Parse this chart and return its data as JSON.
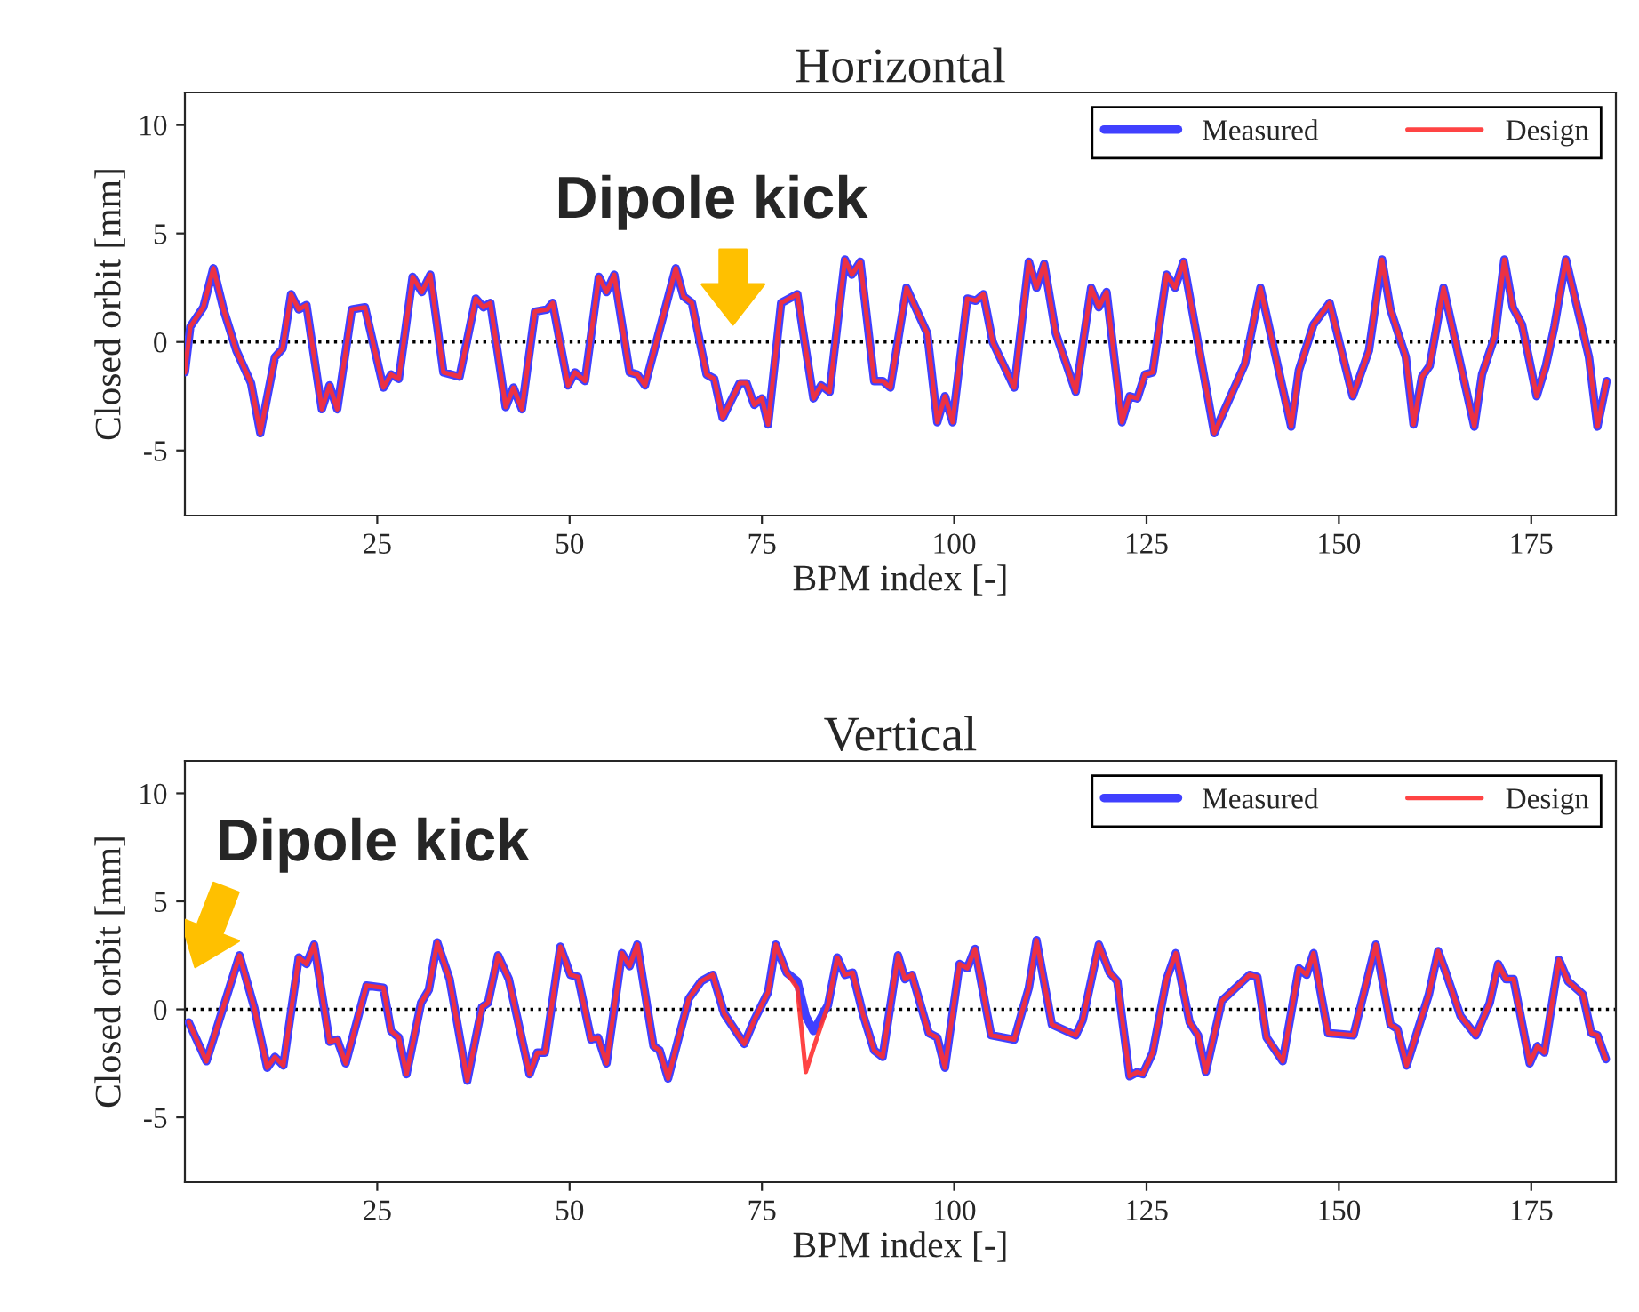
{
  "chart_data": [
    {
      "type": "line",
      "title": "Horizontal",
      "xlabel": "BPM index [-]",
      "ylabel": "Closed orbit [mm]",
      "xlim": [
        0,
        186
      ],
      "ylim": [
        -8,
        11.5
      ],
      "xticks": [
        25,
        50,
        75,
        100,
        125,
        150,
        175
      ],
      "yticks": [
        -5,
        0,
        5,
        10
      ],
      "grid": false,
      "legend": "top right",
      "line_style": "solid",
      "marker": "none",
      "ref_lines": [
        {
          "axis": "y",
          "value": 0,
          "color": "#000000",
          "line_style": "dotted"
        }
      ],
      "annotations": [
        "Dipole kick"
      ],
      "x": [
        0,
        0.7,
        2.4,
        3.7,
        5.1,
        6.7,
        8.6,
        9.8,
        11.7,
        12.7,
        13.8,
        14.8,
        15.8,
        17.8,
        18.8,
        19.8,
        21.7,
        23.4,
        25.8,
        26.8,
        27.8,
        29.6,
        30.8,
        31.9,
        33.6,
        35.7,
        37.8,
        38.8,
        39.7,
        41.7,
        42.7,
        43.8,
        45.5,
        47.1,
        47.8,
        49.8,
        50.7,
        52.0,
        53.8,
        54.8,
        55.8,
        57.8,
        58.8,
        59.8,
        63.8,
        64.8,
        65.9,
        67.8,
        68.8,
        69.9,
        72.1,
        73.0,
        74.0,
        75.0,
        75.8,
        77.5,
        79.6,
        81.7,
        82.7,
        83.8,
        85.8,
        86.7,
        87.8,
        89.6,
        90.7,
        91.7,
        93.8,
        96.5,
        97.8,
        98.8,
        99.8,
        101.7,
        102.8,
        103.8,
        105.0,
        107.8,
        109.7,
        110.7,
        111.7,
        113.2,
        115.8,
        117.8,
        118.8,
        119.8,
        121.8,
        122.8,
        123.8,
        124.8,
        125.8,
        127.6,
        128.7,
        129.8,
        133.8,
        137.8,
        139.8,
        143.8,
        144.8,
        146.7,
        148.8,
        151.8,
        153.9,
        155.6,
        156.7,
        158.7,
        159.7,
        160.8,
        161.8,
        163.6,
        165.6,
        167.6,
        168.6,
        170.3,
        171.5,
        172.6,
        173.8,
        175.7,
        176.9,
        178.0,
        179.5,
        182.5,
        183.6,
        184.8
      ],
      "series": [
        {
          "name": "Measured",
          "color": "#4040ff",
          "values": [
            -1.4,
            0.7,
            1.6,
            3.4,
            1.4,
            -0.4,
            -1.9,
            -4.2,
            -0.7,
            -0.3,
            2.2,
            1.5,
            1.7,
            -3.1,
            -2.0,
            -3.1,
            1.5,
            1.6,
            -2.1,
            -1.5,
            -1.7,
            3.0,
            2.3,
            3.1,
            -1.4,
            -1.6,
            2.0,
            1.6,
            1.8,
            -3.0,
            -2.1,
            -3.1,
            1.4,
            1.5,
            1.8,
            -2.0,
            -1.4,
            -1.8,
            3.0,
            2.3,
            3.1,
            -1.4,
            -1.5,
            -2.0,
            3.4,
            2.1,
            1.8,
            -1.5,
            -1.7,
            -3.5,
            -1.9,
            -1.9,
            -2.9,
            -2.6,
            -3.8,
            1.8,
            2.2,
            -2.6,
            -2.0,
            -2.3,
            3.8,
            3.1,
            3.7,
            -1.8,
            -1.8,
            -2.1,
            2.5,
            0.4,
            -3.7,
            -2.5,
            -3.7,
            2.0,
            1.9,
            2.2,
            0,
            -2.1,
            3.7,
            2.5,
            3.6,
            0.4,
            -2.3,
            2.5,
            1.6,
            2.3,
            -3.7,
            -2.5,
            -2.6,
            -1.5,
            -1.4,
            3.1,
            2.5,
            3.7,
            -4.2,
            -1.0,
            2.5,
            -3.9,
            -1.3,
            0.8,
            1.8,
            -2.5,
            -0.4,
            3.8,
            1.5,
            -0.7,
            -3.8,
            -1.6,
            -1.1,
            2.5,
            -0.7,
            -3.9,
            -1.5,
            0.3,
            3.8,
            1.6,
            0.8,
            -2.5,
            -1.1,
            0.7,
            3.8,
            -0.7,
            -3.9,
            -1.8
          ]
        },
        {
          "name": "Design",
          "color": "#ff3030",
          "values": [
            -1.4,
            0.7,
            1.6,
            3.4,
            1.4,
            -0.4,
            -1.9,
            -4.2,
            -0.7,
            -0.3,
            2.2,
            1.5,
            1.7,
            -3.1,
            -2.0,
            -3.1,
            1.5,
            1.6,
            -2.1,
            -1.5,
            -1.7,
            3.0,
            2.3,
            3.1,
            -1.4,
            -1.6,
            2.0,
            1.6,
            1.8,
            -3.0,
            -2.1,
            -3.1,
            1.4,
            1.5,
            1.8,
            -2.0,
            -1.4,
            -1.8,
            3.0,
            2.3,
            3.1,
            -1.4,
            -1.5,
            -2.0,
            3.4,
            2.1,
            1.8,
            -1.5,
            -1.7,
            -3.5,
            -1.9,
            -1.9,
            -2.9,
            -2.6,
            -3.8,
            1.8,
            2.2,
            -2.6,
            -2.0,
            -2.3,
            3.8,
            3.1,
            3.7,
            -1.8,
            -1.8,
            -2.1,
            2.5,
            0.4,
            -3.7,
            -2.5,
            -3.7,
            2.0,
            1.9,
            2.2,
            0,
            -2.1,
            3.7,
            2.5,
            3.6,
            0.4,
            -2.3,
            2.5,
            1.6,
            2.3,
            -3.7,
            -2.5,
            -2.6,
            -1.5,
            -1.4,
            3.1,
            2.5,
            3.7,
            -4.2,
            -1.0,
            2.5,
            -3.9,
            -1.3,
            0.8,
            1.8,
            -2.5,
            -0.4,
            3.8,
            1.5,
            -0.7,
            -3.8,
            -1.6,
            -1.1,
            2.5,
            -0.7,
            -3.9,
            -1.5,
            0.3,
            3.8,
            1.6,
            0.8,
            -2.5,
            -1.1,
            0.7,
            3.8,
            -0.7,
            -3.9,
            -1.8
          ]
        }
      ]
    },
    {
      "type": "line",
      "title": "Vertical",
      "xlabel": "BPM index [-]",
      "ylabel": "Closed orbit [mm]",
      "xlim": [
        0,
        186
      ],
      "ylim": [
        -8,
        11.5
      ],
      "xticks": [
        25,
        50,
        75,
        100,
        125,
        150,
        175
      ],
      "yticks": [
        -5,
        0,
        5,
        10
      ],
      "grid": false,
      "legend": "top right",
      "line_style": "solid",
      "marker": "none",
      "ref_lines": [
        {
          "axis": "y",
          "value": 0,
          "color": "#000000",
          "line_style": "dotted"
        }
      ],
      "annotations": [
        "Dipole kick"
      ],
      "x": [
        0.5,
        2.8,
        7.1,
        9.0,
        10.7,
        11.7,
        12.8,
        14.8,
        15.8,
        16.8,
        18.8,
        19.8,
        20.9,
        23.6,
        25.8,
        26.8,
        27.8,
        28.8,
        30.7,
        31.7,
        32.8,
        34.4,
        36.7,
        38.6,
        39.4,
        40.7,
        42.1,
        44.8,
        45.8,
        46.8,
        48.8,
        50.1,
        51.1,
        52.8,
        53.7,
        54.8,
        56.8,
        57.8,
        58.8,
        60.9,
        61.7,
        62.8,
        65.5,
        67.1,
        68.6,
        70.1,
        72.7,
        74.0,
        75.8,
        76.8,
        78.2,
        79.6,
        80.7,
        81.7,
        83.6,
        84.8,
        85.8,
        86.8,
        88.2,
        89.6,
        90.7,
        92.7,
        93.6,
        94.5,
        96.7,
        97.8,
        98.8,
        100.7,
        101.7,
        102.7,
        104.8,
        107.8,
        109.7,
        110.7,
        112.7,
        115.8,
        116.7,
        118.8,
        120.2,
        121.2,
        122.8,
        123.8,
        124.5,
        125.8,
        127.6,
        128.8,
        130.6,
        131.7,
        132.7,
        134.8,
        138.4,
        139.4,
        140.6,
        142.7,
        144.8,
        145.8,
        146.7,
        148.6,
        151.9,
        154.8,
        156.7,
        157.6,
        158.8,
        161.7,
        162.9,
        164.0,
        165.8,
        167.8,
        169.6,
        170.7,
        171.7,
        172.7,
        174.8,
        175.8,
        176.7,
        178.6,
        179.8,
        181.7,
        182.8,
        183.6,
        184.7
      ],
      "series": [
        {
          "name": "Measured",
          "color": "#4040ff",
          "values": [
            -0.6,
            -2.4,
            2.5,
            0.1,
            -2.7,
            -2.2,
            -2.6,
            2.4,
            2.1,
            3.0,
            -1.5,
            -1.4,
            -2.5,
            1.1,
            1.0,
            -1.0,
            -1.3,
            -3.0,
            0.3,
            0.9,
            3.1,
            1.4,
            -3.3,
            0.1,
            0.3,
            2.5,
            1.4,
            -3.0,
            -2.0,
            -2.0,
            2.9,
            1.6,
            1.5,
            -1.4,
            -1.3,
            -2.5,
            2.6,
            2.0,
            3.0,
            -1.7,
            -1.9,
            -3.2,
            0.5,
            1.3,
            1.6,
            -0.2,
            -1.6,
            -0.5,
            0.8,
            3.0,
            1.7,
            1.3,
            -0.3,
            -1.0,
            0.2,
            2.4,
            1.6,
            1.7,
            -0.3,
            -1.9,
            -2.2,
            2.5,
            1.4,
            1.6,
            -1.1,
            -1.3,
            -2.7,
            2.1,
            1.9,
            2.8,
            -1.2,
            -1.4,
            1.0,
            3.2,
            -0.7,
            -1.2,
            -0.5,
            3.0,
            1.7,
            1.3,
            -3.1,
            -2.9,
            -3.0,
            -2.0,
            1.4,
            2.6,
            -0.6,
            -1.2,
            -2.9,
            0.4,
            1.6,
            1.5,
            -1.3,
            -2.4,
            1.9,
            1.6,
            2.6,
            -1.1,
            -1.2,
            3.0,
            -0.7,
            -0.9,
            -2.6,
            0.7,
            2.7,
            1.6,
            -0.3,
            -1.2,
            0.3,
            2.1,
            1.4,
            1.4,
            -2.5,
            -1.7,
            -2.0,
            2.3,
            1.3,
            0.7,
            -1.1,
            -1.2,
            -2.3
          ]
        },
        {
          "name": "Design",
          "color": "#ff3030",
          "values": [
            -0.6,
            -2.4,
            2.5,
            0.1,
            -2.7,
            -2.2,
            -2.6,
            2.4,
            2.1,
            3.0,
            -1.5,
            -1.4,
            -2.5,
            1.1,
            1.0,
            -1.0,
            -1.3,
            -3.0,
            0.3,
            0.9,
            3.1,
            1.4,
            -3.3,
            0.1,
            0.3,
            2.5,
            1.4,
            -3.0,
            -2.0,
            -2.0,
            2.9,
            1.6,
            1.5,
            -1.4,
            -1.3,
            -2.5,
            2.6,
            2.0,
            3.0,
            -1.7,
            -1.9,
            -3.2,
            0.5,
            1.3,
            1.6,
            -0.2,
            -1.6,
            -0.5,
            0.8,
            3.0,
            1.7,
            1.0,
            -2.9,
            -1.8,
            0.2,
            2.4,
            1.6,
            1.7,
            -0.3,
            -1.9,
            -2.2,
            2.5,
            1.4,
            1.6,
            -1.1,
            -1.3,
            -2.7,
            2.1,
            1.9,
            2.8,
            -1.2,
            -1.4,
            1.0,
            3.2,
            -0.7,
            -1.2,
            -0.5,
            3.0,
            1.7,
            1.3,
            -3.1,
            -2.9,
            -3.0,
            -2.0,
            1.4,
            2.6,
            -0.6,
            -1.2,
            -2.9,
            0.4,
            1.6,
            1.5,
            -1.3,
            -2.4,
            1.9,
            1.6,
            2.6,
            -1.1,
            -1.2,
            3.0,
            -0.7,
            -0.9,
            -2.6,
            0.7,
            2.7,
            1.6,
            -0.3,
            -1.2,
            0.3,
            2.1,
            1.4,
            1.4,
            -2.5,
            -1.7,
            -2.0,
            2.3,
            1.3,
            0.7,
            -1.1,
            -1.2,
            -2.3
          ]
        }
      ]
    }
  ]
}
